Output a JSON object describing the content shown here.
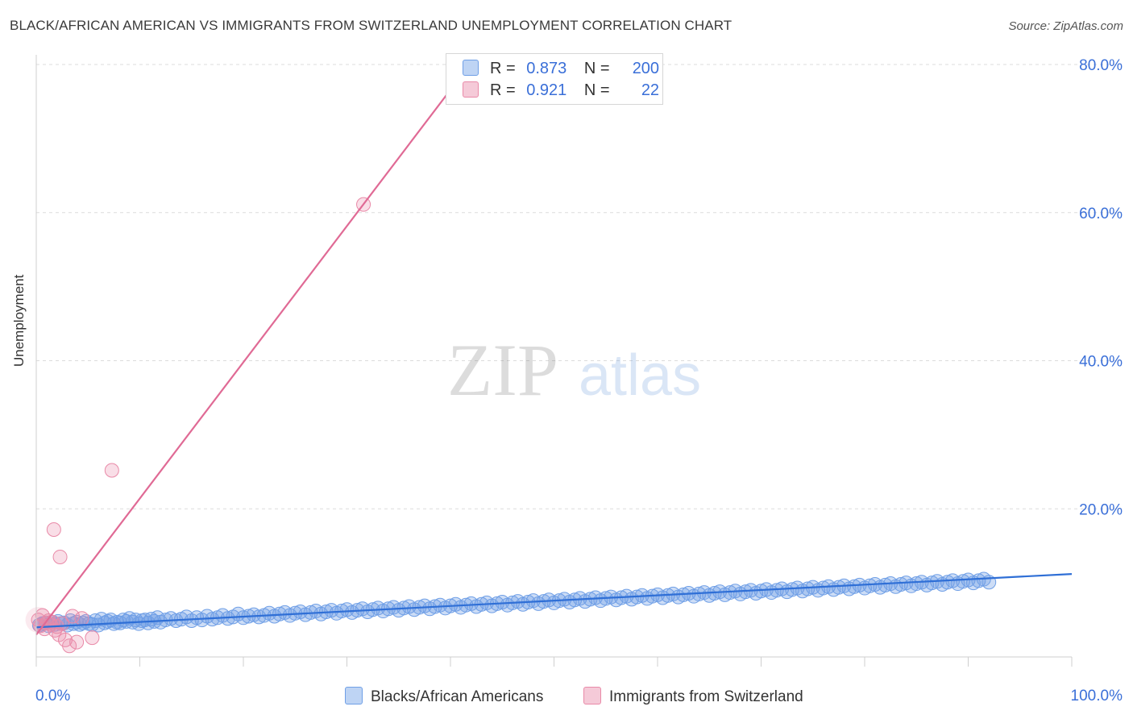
{
  "title": "BLACK/AFRICAN AMERICAN VS IMMIGRANTS FROM SWITZERLAND UNEMPLOYMENT CORRELATION CHART",
  "source": "Source: ZipAtlas.com",
  "watermark": {
    "zip": "ZIP",
    "atlas": "atlas"
  },
  "legend_top": [
    {
      "r_label": "R =",
      "r_value": "0.873",
      "n_label": "N =",
      "n_value": "200",
      "color": "#6f9fe6"
    },
    {
      "r_label": "R =",
      "r_value": "0.921",
      "n_label": "N =",
      "n_value": "22",
      "color": "#e98aa8"
    }
  ],
  "legend_bottom": [
    {
      "label": "Blacks/African Americans",
      "color": "#6f9fe6"
    },
    {
      "label": "Immigrants from Switzerland",
      "color": "#e98aa8"
    }
  ],
  "chart_data": {
    "type": "scatter",
    "title": "BLACK/AFRICAN AMERICAN VS IMMIGRANTS FROM SWITZERLAND UNEMPLOYMENT CORRELATION CHART",
    "xlabel": "",
    "ylabel": "Unemployment",
    "xlim": [
      0,
      100
    ],
    "ylim": [
      0,
      80
    ],
    "x_tick_labels": [
      "0.0%",
      "100.0%"
    ],
    "y_ticks": [
      20,
      40,
      60,
      80
    ],
    "y_tick_labels": [
      "20.0%",
      "40.0%",
      "60.0%",
      "80.0%"
    ],
    "grid": true,
    "series": [
      {
        "name": "Blacks/African Americans",
        "color": "#6f9fe6",
        "R": 0.873,
        "N": 200,
        "trendline": {
          "x": [
            0,
            100
          ],
          "y": [
            4.0,
            11.2
          ]
        },
        "points": [
          [
            0.3,
            4.3
          ],
          [
            0.6,
            4.5
          ],
          [
            0.9,
            4.6
          ],
          [
            1.2,
            4.2
          ],
          [
            1.5,
            4.7
          ],
          [
            1.8,
            4.4
          ],
          [
            2.1,
            4.8
          ],
          [
            2.4,
            4.5
          ],
          [
            2.7,
            4.6
          ],
          [
            3.0,
            4.3
          ],
          [
            3.3,
            4.9
          ],
          [
            3.6,
            4.5
          ],
          [
            3.9,
            4.7
          ],
          [
            4.2,
            4.4
          ],
          [
            4.5,
            4.6
          ],
          [
            4.8,
            4.8
          ],
          [
            5.1,
            4.5
          ],
          [
            5.4,
            4.4
          ],
          [
            5.7,
            4.9
          ],
          [
            6.0,
            4.3
          ],
          [
            6.3,
            5.1
          ],
          [
            6.6,
            4.6
          ],
          [
            6.9,
            4.8
          ],
          [
            7.2,
            5.0
          ],
          [
            7.5,
            4.5
          ],
          [
            7.8,
            4.7
          ],
          [
            8.1,
            4.6
          ],
          [
            8.4,
            5.0
          ],
          [
            8.7,
            4.8
          ],
          [
            9.0,
            5.2
          ],
          [
            9.3,
            4.7
          ],
          [
            9.6,
            5.0
          ],
          [
            9.9,
            4.5
          ],
          [
            10.2,
            4.9
          ],
          [
            10.5,
            5.0
          ],
          [
            10.8,
            4.6
          ],
          [
            11.1,
            5.1
          ],
          [
            11.4,
            4.8
          ],
          [
            11.7,
            5.3
          ],
          [
            12.0,
            4.7
          ],
          [
            12.5,
            5.0
          ],
          [
            13.0,
            5.2
          ],
          [
            13.5,
            4.9
          ],
          [
            14.0,
            5.1
          ],
          [
            14.5,
            5.4
          ],
          [
            15.0,
            4.9
          ],
          [
            15.5,
            5.3
          ],
          [
            16.0,
            5.0
          ],
          [
            16.5,
            5.5
          ],
          [
            17.0,
            5.1
          ],
          [
            17.5,
            5.3
          ],
          [
            18.0,
            5.6
          ],
          [
            18.5,
            5.2
          ],
          [
            19.0,
            5.4
          ],
          [
            19.5,
            5.8
          ],
          [
            20.0,
            5.3
          ],
          [
            20.5,
            5.5
          ],
          [
            21.0,
            5.7
          ],
          [
            21.5,
            5.4
          ],
          [
            22.0,
            5.6
          ],
          [
            22.5,
            5.9
          ],
          [
            23.0,
            5.5
          ],
          [
            23.5,
            5.8
          ],
          [
            24.0,
            6.0
          ],
          [
            24.5,
            5.6
          ],
          [
            25.0,
            5.9
          ],
          [
            25.5,
            6.1
          ],
          [
            26.0,
            5.7
          ],
          [
            26.5,
            6.0
          ],
          [
            27.0,
            6.2
          ],
          [
            27.5,
            5.8
          ],
          [
            28.0,
            6.1
          ],
          [
            28.5,
            6.3
          ],
          [
            29.0,
            5.9
          ],
          [
            29.5,
            6.2
          ],
          [
            30.0,
            6.4
          ],
          [
            30.5,
            6.0
          ],
          [
            31.0,
            6.3
          ],
          [
            31.5,
            6.5
          ],
          [
            32.0,
            6.1
          ],
          [
            32.5,
            6.4
          ],
          [
            33.0,
            6.6
          ],
          [
            33.5,
            6.2
          ],
          [
            34.0,
            6.5
          ],
          [
            34.5,
            6.7
          ],
          [
            35.0,
            6.3
          ],
          [
            35.5,
            6.6
          ],
          [
            36.0,
            6.8
          ],
          [
            36.5,
            6.4
          ],
          [
            37.0,
            6.7
          ],
          [
            37.5,
            6.9
          ],
          [
            38.0,
            6.5
          ],
          [
            38.5,
            6.8
          ],
          [
            39.0,
            7.0
          ],
          [
            39.5,
            6.6
          ],
          [
            40.0,
            6.9
          ],
          [
            40.5,
            7.1
          ],
          [
            41.0,
            6.7
          ],
          [
            41.5,
            7.0
          ],
          [
            42.0,
            7.2
          ],
          [
            42.5,
            6.8
          ],
          [
            43.0,
            7.1
          ],
          [
            43.5,
            7.3
          ],
          [
            44.0,
            6.9
          ],
          [
            44.5,
            7.2
          ],
          [
            45.0,
            7.4
          ],
          [
            45.5,
            7.0
          ],
          [
            46.0,
            7.3
          ],
          [
            46.5,
            7.5
          ],
          [
            47.0,
            7.1
          ],
          [
            47.5,
            7.4
          ],
          [
            48.0,
            7.6
          ],
          [
            48.5,
            7.2
          ],
          [
            49.0,
            7.5
          ],
          [
            49.5,
            7.7
          ],
          [
            50.0,
            7.3
          ],
          [
            50.5,
            7.6
          ],
          [
            51.0,
            7.8
          ],
          [
            51.5,
            7.4
          ],
          [
            52.0,
            7.7
          ],
          [
            52.5,
            7.9
          ],
          [
            53.0,
            7.5
          ],
          [
            53.5,
            7.8
          ],
          [
            54.0,
            8.0
          ],
          [
            54.5,
            7.6
          ],
          [
            55.0,
            7.9
          ],
          [
            55.5,
            8.1
          ],
          [
            56.0,
            7.7
          ],
          [
            56.5,
            8.0
          ],
          [
            57.0,
            8.2
          ],
          [
            57.5,
            7.8
          ],
          [
            58.0,
            8.1
          ],
          [
            58.5,
            8.3
          ],
          [
            59.0,
            7.9
          ],
          [
            59.5,
            8.2
          ],
          [
            60.0,
            8.4
          ],
          [
            60.5,
            8.0
          ],
          [
            61.0,
            8.3
          ],
          [
            61.5,
            8.5
          ],
          [
            62.0,
            8.1
          ],
          [
            62.5,
            8.4
          ],
          [
            63.0,
            8.6
          ],
          [
            63.5,
            8.2
          ],
          [
            64.0,
            8.5
          ],
          [
            64.5,
            8.7
          ],
          [
            65.0,
            8.3
          ],
          [
            65.5,
            8.6
          ],
          [
            66.0,
            8.8
          ],
          [
            66.5,
            8.4
          ],
          [
            67.0,
            8.7
          ],
          [
            67.5,
            8.9
          ],
          [
            68.0,
            8.5
          ],
          [
            68.5,
            8.8
          ],
          [
            69.0,
            9.0
          ],
          [
            69.5,
            8.6
          ],
          [
            70.0,
            8.9
          ],
          [
            70.5,
            9.1
          ],
          [
            71.0,
            8.7
          ],
          [
            71.5,
            9.0
          ],
          [
            72.0,
            9.2
          ],
          [
            72.5,
            8.8
          ],
          [
            73.0,
            9.1
          ],
          [
            73.5,
            9.3
          ],
          [
            74.0,
            8.9
          ],
          [
            74.5,
            9.2
          ],
          [
            75.0,
            9.4
          ],
          [
            75.5,
            9.0
          ],
          [
            76.0,
            9.3
          ],
          [
            76.5,
            9.5
          ],
          [
            77.0,
            9.1
          ],
          [
            77.5,
            9.4
          ],
          [
            78.0,
            9.6
          ],
          [
            78.5,
            9.2
          ],
          [
            79.0,
            9.5
          ],
          [
            79.5,
            9.7
          ],
          [
            80.0,
            9.3
          ],
          [
            80.5,
            9.6
          ],
          [
            81.0,
            9.8
          ],
          [
            81.5,
            9.4
          ],
          [
            82.0,
            9.7
          ],
          [
            82.5,
            9.9
          ],
          [
            83.0,
            9.5
          ],
          [
            83.5,
            9.8
          ],
          [
            84.0,
            10.0
          ],
          [
            84.5,
            9.6
          ],
          [
            85.0,
            9.9
          ],
          [
            85.5,
            10.1
          ],
          [
            86.0,
            9.7
          ],
          [
            86.5,
            10.0
          ],
          [
            87.0,
            10.2
          ],
          [
            87.5,
            9.8
          ],
          [
            88.0,
            10.1
          ],
          [
            88.5,
            10.3
          ],
          [
            89.0,
            9.9
          ],
          [
            89.5,
            10.2
          ],
          [
            90.0,
            10.4
          ],
          [
            90.5,
            10.0
          ],
          [
            91.0,
            10.3
          ],
          [
            91.5,
            10.5
          ],
          [
            92.0,
            10.1
          ]
        ]
      },
      {
        "name": "Immigrants from Switzerland",
        "color": "#e98aa8",
        "R": 0.921,
        "N": 22,
        "trendline": {
          "x": [
            0,
            40.5
          ],
          "y": [
            3.0,
            77.5
          ]
        },
        "points": [
          [
            0.2,
            5.0
          ],
          [
            0.4,
            4.2
          ],
          [
            0.6,
            5.6
          ],
          [
            0.8,
            3.8
          ],
          [
            1.0,
            4.6
          ],
          [
            1.2,
            4.9
          ],
          [
            1.4,
            4.4
          ],
          [
            1.6,
            4.7
          ],
          [
            1.8,
            3.6
          ],
          [
            2.0,
            4.1
          ],
          [
            2.2,
            3.0
          ],
          [
            2.5,
            4.5
          ],
          [
            2.8,
            2.3
          ],
          [
            3.2,
            1.5
          ],
          [
            3.5,
            5.5
          ],
          [
            3.9,
            2.0
          ],
          [
            4.4,
            5.2
          ],
          [
            5.4,
            2.6
          ],
          [
            1.7,
            17.2
          ],
          [
            2.3,
            13.5
          ],
          [
            7.3,
            25.2
          ],
          [
            31.6,
            61.1
          ]
        ]
      }
    ]
  }
}
